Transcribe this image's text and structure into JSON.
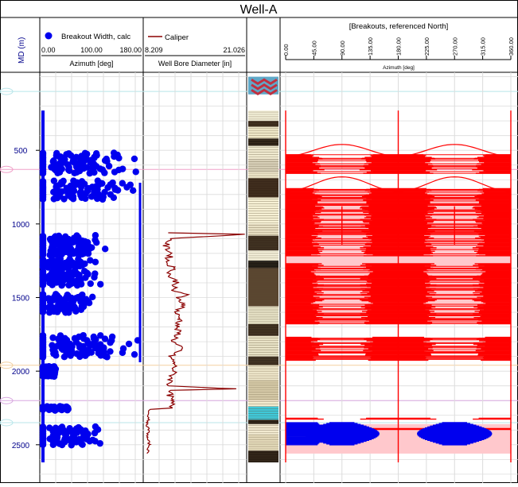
{
  "title": "Well-A",
  "depth_track": {
    "label": "MD (m)",
    "ticks": [
      500,
      1000,
      1500,
      2000,
      2500
    ],
    "range": [
      -30,
      2760
    ]
  },
  "azimuth_track": {
    "legend": "Breakout Width, calc",
    "legend_color": "#0000ee",
    "scale": [
      "0.00",
      "100.00",
      "180.00"
    ],
    "axis_label": "Azimuth [deg]"
  },
  "caliper_track": {
    "legend": "Caliper",
    "legend_color": "#8b0000",
    "scale": [
      "8.209",
      "21.026"
    ],
    "axis_label": "Well Bore Diameter [in]"
  },
  "breakout_track": {
    "title": "[Breakouts, referenced North]",
    "ticks": [
      "0.00",
      "45.00",
      "90.00",
      "135.00",
      "180.00",
      "225.00",
      "270.00",
      "315.00",
      "360.00"
    ],
    "axis_label": "Azimuth [deg]",
    "red_color": "#ff0000",
    "blue_color": "#0000ee",
    "fill_color": "#ffc8cc"
  },
  "chart_data": {
    "type": "scatter",
    "title": "Well-A",
    "ylabel": "MD (m)",
    "ylim": [
      -30,
      2760
    ],
    "azimuth_xlim": [
      0,
      180
    ],
    "caliper_xlim": [
      8.209,
      21.026
    ],
    "breakout_xlim": [
      0,
      360
    ],
    "breakout_width_bands": [
      {
        "top": 520,
        "bottom": 660,
        "xmax": 180
      },
      {
        "top": 710,
        "bottom": 830,
        "xmax": 180
      },
      {
        "top": 1080,
        "bottom": 1210,
        "xmax": 120
      },
      {
        "top": 1240,
        "bottom": 1300,
        "xmax": 110
      },
      {
        "top": 1320,
        "bottom": 1420,
        "xmax": 115
      },
      {
        "top": 1480,
        "bottom": 1600,
        "xmax": 100
      },
      {
        "top": 1760,
        "bottom": 1910,
        "xmax": 180
      },
      {
        "top": 1970,
        "bottom": 2040,
        "xmax": 25
      },
      {
        "top": 2240,
        "bottom": 2270,
        "xmax": 70
      },
      {
        "top": 2380,
        "bottom": 2500,
        "xmax": 120
      }
    ],
    "caliper_series": {
      "name": "Caliper",
      "depth": [
        1060,
        1070,
        1100,
        1150,
        1200,
        1260,
        1300,
        1350,
        1400,
        1450,
        1480,
        1500,
        1550,
        1600,
        1650,
        1700,
        1750,
        1800,
        1850,
        1900,
        1950,
        2000,
        2050,
        2100,
        2120,
        2130,
        2140,
        2200,
        2250,
        2260,
        2300,
        2330,
        2350,
        2400,
        2450,
        2500,
        2560
      ],
      "diameter": [
        11.2,
        21.0,
        11.5,
        10.8,
        11.6,
        11.0,
        11.9,
        11.3,
        12.4,
        11.6,
        13.8,
        12.2,
        13.4,
        12.1,
        12.8,
        12.3,
        12.5,
        11.8,
        12.9,
        11.4,
        12.0,
        11.9,
        11.6,
        11.3,
        19.9,
        11.5,
        11.3,
        11.6,
        11.7,
        8.9,
        8.6,
        8.8,
        8.4,
        8.7,
        8.5,
        8.8,
        8.5
      ]
    },
    "breakouts_red": [
      {
        "top": 530,
        "bottom": 660
      },
      {
        "top": 760,
        "bottom": 1220
      },
      {
        "top": 1270,
        "bottom": 1680
      },
      {
        "top": 1770,
        "bottom": 1930
      },
      {
        "top": 2320,
        "bottom": 2330
      },
      {
        "top": 2390,
        "bottom": 2400
      }
    ],
    "breakouts_blue": [
      {
        "top": 2350,
        "bottom": 2500
      }
    ]
  }
}
